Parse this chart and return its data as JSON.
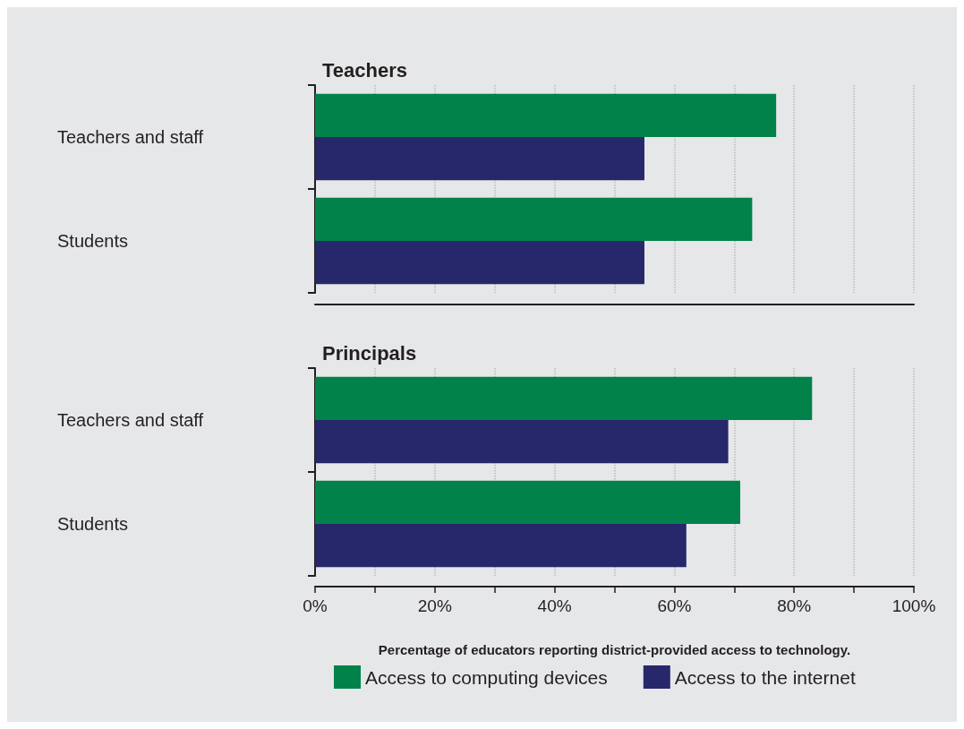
{
  "chart_data": [
    {
      "type": "bar",
      "orientation": "horizontal",
      "title": "Teachers",
      "categories": [
        "Teachers and staff",
        "Students"
      ],
      "series": [
        {
          "color": "#00824a",
          "values": [
            77,
            73
          ]
        },
        {
          "color": "#27276b",
          "values": [
            55,
            55
          ]
        }
      ],
      "xlim": [
        0,
        100
      ],
      "xticks": [
        0,
        10,
        20,
        30,
        40,
        50,
        60,
        70,
        80,
        90,
        100
      ],
      "grid": "x",
      "tick_labels": "y"
    },
    {
      "type": "bar",
      "orientation": "horizontal",
      "title": "Principals",
      "xlabel": "Percentage of educators reporting district-provided access to technology.",
      "categories": [
        "Teachers and staff",
        "Students"
      ],
      "series": [
        {
          "name": "Access to computing devices",
          "color": "#00824a",
          "values": [
            83,
            71
          ]
        },
        {
          "name": "Access to the internet",
          "color": "#27276b",
          "values": [
            69,
            62
          ]
        }
      ],
      "xlim": [
        0,
        100
      ],
      "xticks": [
        {
          "value": 0,
          "label": "0%"
        },
        {
          "value": 10,
          "label": null
        },
        {
          "value": 20,
          "label": "20%"
        },
        {
          "value": 30,
          "label": null
        },
        {
          "value": 40,
          "label": "40%"
        },
        {
          "value": 50,
          "label": null
        },
        {
          "value": 60,
          "label": "60%"
        },
        {
          "value": 70,
          "label": null
        },
        {
          "value": 80,
          "label": "80%"
        },
        {
          "value": 90,
          "label": null
        },
        {
          "value": 100,
          "label": "100%"
        }
      ],
      "grid": "x",
      "legend": "bottom"
    }
  ]
}
